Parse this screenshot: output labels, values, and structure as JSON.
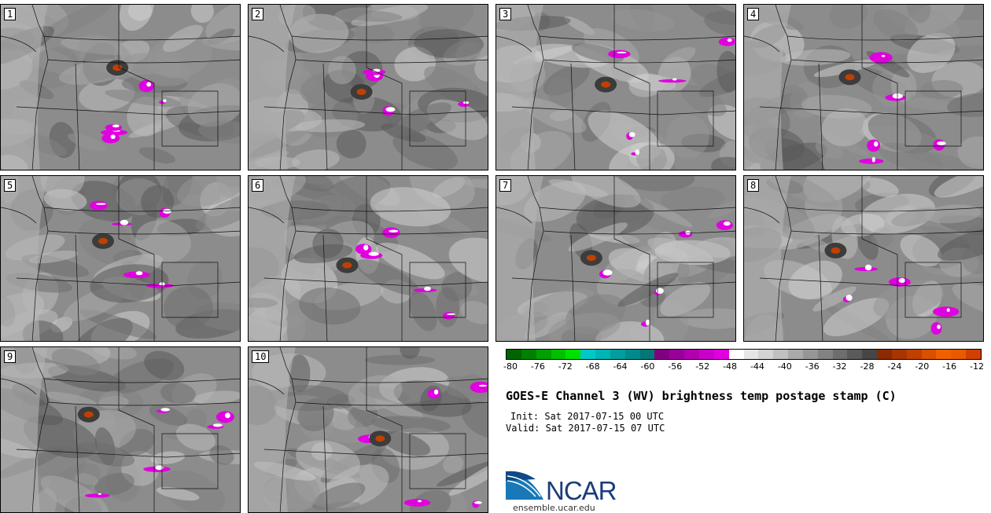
{
  "panels": [
    {
      "label": "1"
    },
    {
      "label": "2"
    },
    {
      "label": "3"
    },
    {
      "label": "4"
    },
    {
      "label": "5"
    },
    {
      "label": "6"
    },
    {
      "label": "7"
    },
    {
      "label": "8"
    },
    {
      "label": "9"
    },
    {
      "label": "10"
    }
  ],
  "colorbar": {
    "ticks": [
      "-80",
      "-76",
      "-72",
      "-68",
      "-64",
      "-60",
      "-56",
      "-52",
      "-48",
      "-44",
      "-40",
      "-36",
      "-32",
      "-28",
      "-24",
      "-20",
      "-16",
      "-12"
    ],
    "colors": [
      "#006400",
      "#008000",
      "#00a000",
      "#00c000",
      "#00e000",
      "#00c8c8",
      "#00b4b4",
      "#009ea0",
      "#008a8c",
      "#007878",
      "#800080",
      "#9a009a",
      "#b000b0",
      "#c800c8",
      "#e000e0",
      "#ffffff",
      "#e6e6e6",
      "#d4d4d4",
      "#c0c0c0",
      "#aaaaaa",
      "#969696",
      "#828282",
      "#6e6e6e",
      "#5a5a5a",
      "#464646",
      "#8b2a00",
      "#a83400",
      "#c04000",
      "#d85000",
      "#f06000",
      "#e85a00",
      "#d04000"
    ]
  },
  "title": "GOES-E Channel 3 (WV) brightness temp postage stamp (C)",
  "init": "Init: Sat 2017-07-15 00 UTC",
  "valid": "Valid: Sat 2017-07-15 07 UTC",
  "logo": {
    "text": "NCAR",
    "site": "ensemble.ucar.edu",
    "brand_color": "#1a3d7c",
    "accent_color": "#1878b8"
  },
  "colors": {
    "moist_high": "#e000e0",
    "dry_warm": "#c04000",
    "background_gray": "#8a8a8a"
  }
}
